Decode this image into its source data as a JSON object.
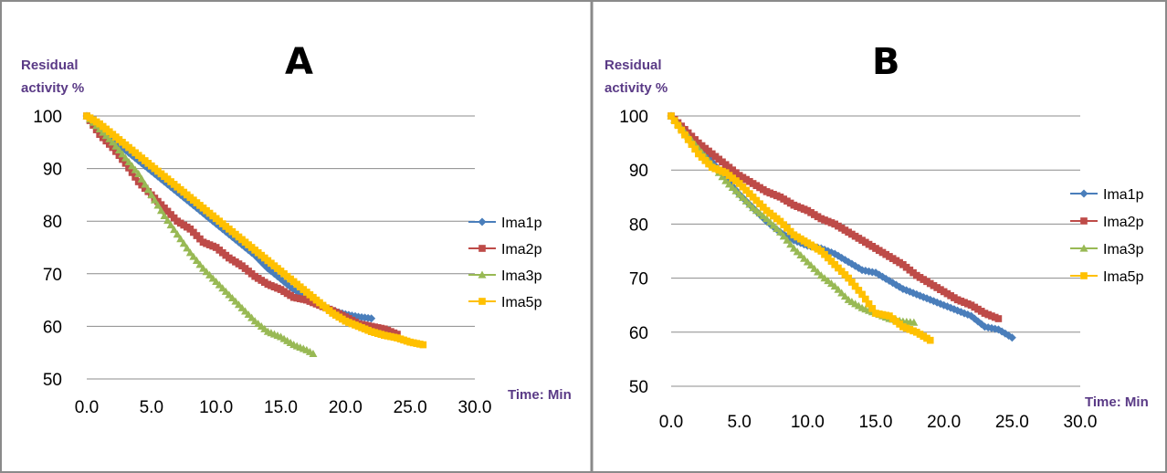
{
  "chart_data": [
    {
      "type": "line",
      "panel": "A",
      "title": "A",
      "ylabel": "Residual activity %",
      "ylabel_lines": [
        "Residual",
        "activity %"
      ],
      "xlabel": "Time: Min",
      "xlim": [
        0,
        30
      ],
      "ylim": [
        50,
        100
      ],
      "xticks": [
        "0.0",
        "5.0",
        "10.0",
        "15.0",
        "20.0",
        "25.0",
        "30.0"
      ],
      "yticks": [
        "50",
        "60",
        "70",
        "80",
        "90",
        "100"
      ],
      "grid": "horizontal",
      "legend_position": "right",
      "series": [
        {
          "name": "Ima1p",
          "color": "#4a7ebb",
          "marker": "diamond",
          "x": [
            0,
            1,
            2,
            3,
            4,
            5,
            6,
            7,
            8,
            9,
            10,
            11,
            12,
            13,
            14,
            15,
            16,
            17,
            18,
            19,
            20,
            21,
            22
          ],
          "y": [
            100,
            97.5,
            95.5,
            93.5,
            91.5,
            89.5,
            87.5,
            85.5,
            83.5,
            81.5,
            79.5,
            77.5,
            75.5,
            73.5,
            71,
            69,
            67,
            65.5,
            64,
            63,
            62.3,
            61.8,
            61.5
          ]
        },
        {
          "name": "Ima2p",
          "color": "#be4b48",
          "marker": "square",
          "x": [
            0,
            1,
            2,
            3,
            4,
            5,
            6,
            7,
            8,
            9,
            10,
            11,
            12,
            13,
            14,
            15,
            16,
            17,
            18,
            19,
            20,
            21,
            22,
            23,
            24
          ],
          "y": [
            100,
            96.5,
            94,
            91,
            87.5,
            85,
            82.5,
            80,
            78.5,
            76,
            75,
            73,
            71.5,
            69.5,
            68,
            67,
            65.5,
            65,
            64,
            63,
            61.8,
            60.5,
            60,
            59.5,
            58.5
          ]
        },
        {
          "name": "Ima3p",
          "color": "#98b954",
          "marker": "triangle",
          "x": [
            0,
            1,
            2,
            3,
            4,
            5,
            6,
            7,
            8,
            9,
            10,
            11,
            12,
            13,
            14,
            15,
            16,
            17,
            17.5
          ],
          "y": [
            100,
            97.5,
            95,
            92,
            89,
            85,
            81,
            77.5,
            74,
            71,
            68.5,
            66,
            63.5,
            61,
            59,
            58,
            56.5,
            55.5,
            54.8
          ]
        },
        {
          "name": "Ima5p",
          "color": "#ffc000",
          "marker": "square",
          "x": [
            0,
            1,
            2,
            3,
            4,
            5,
            6,
            7,
            8,
            9,
            10,
            11,
            12,
            13,
            14,
            15,
            16,
            17,
            18,
            19,
            20,
            21,
            22,
            23,
            24,
            25,
            26
          ],
          "y": [
            100,
            98.5,
            96.5,
            94.5,
            92.5,
            90.5,
            88.5,
            86.5,
            84.5,
            82.5,
            80.5,
            78.5,
            76.5,
            74.5,
            72.5,
            70.5,
            68.5,
            66.5,
            64.5,
            62.5,
            61,
            60,
            59,
            58.3,
            57.8,
            57,
            56.5
          ]
        }
      ]
    },
    {
      "type": "line",
      "panel": "B",
      "title": "B",
      "ylabel": "Residual activity %",
      "ylabel_lines": [
        "Residual",
        "activity %"
      ],
      "xlabel": "Time: Min",
      "xlim": [
        0,
        30
      ],
      "ylim": [
        50,
        100
      ],
      "xticks": [
        "0.0",
        "5.0",
        "10.0",
        "15.0",
        "20.0",
        "25.0",
        "30.0"
      ],
      "yticks": [
        "50",
        "60",
        "70",
        "80",
        "90",
        "100"
      ],
      "grid": "horizontal",
      "legend_position": "right",
      "series": [
        {
          "name": "Ima1p",
          "color": "#4a7ebb",
          "marker": "diamond",
          "x": [
            0,
            1,
            2,
            3,
            4,
            5,
            6,
            7,
            8,
            9,
            10,
            11,
            12,
            13,
            14,
            15,
            16,
            17,
            18,
            19,
            20,
            21,
            22,
            23,
            24,
            25
          ],
          "y": [
            100,
            97.5,
            94.5,
            91.5,
            88.5,
            85.5,
            83,
            80.5,
            78.5,
            77,
            76,
            75.5,
            74.5,
            73,
            71.5,
            71,
            69.5,
            68,
            67,
            66,
            65,
            64,
            63,
            61,
            60.5,
            59
          ]
        },
        {
          "name": "Ima2p",
          "color": "#be4b48",
          "marker": "square",
          "x": [
            0,
            1,
            2,
            3,
            4,
            5,
            6,
            7,
            8,
            9,
            10,
            11,
            12,
            13,
            14,
            15,
            16,
            17,
            18,
            19,
            20,
            21,
            22,
            23,
            24
          ],
          "y": [
            100,
            97.5,
            95,
            93,
            91,
            89,
            87.5,
            86,
            85,
            83.5,
            82.5,
            81,
            80,
            78.5,
            77,
            75.5,
            74,
            72.5,
            70.5,
            69,
            67.5,
            66,
            65,
            63.5,
            62.5
          ]
        },
        {
          "name": "Ima3p",
          "color": "#98b954",
          "marker": "triangle",
          "x": [
            0,
            1,
            2,
            3,
            4,
            5,
            6,
            7,
            8,
            9,
            10,
            11,
            12,
            13,
            14,
            15,
            16,
            17,
            17.8
          ],
          "y": [
            100,
            97,
            94,
            91,
            88,
            85.5,
            83,
            81,
            78.5,
            75.5,
            73,
            70.5,
            68.5,
            66,
            64.5,
            63.5,
            62.5,
            62,
            61.8
          ]
        },
        {
          "name": "Ima5p",
          "color": "#ffc000",
          "marker": "square",
          "x": [
            0,
            1,
            2,
            3,
            4,
            5,
            6,
            7,
            8,
            9,
            10,
            11,
            12,
            13,
            14,
            15,
            16,
            17,
            18,
            19
          ],
          "y": [
            100,
            96.5,
            93,
            90.5,
            89.5,
            87.5,
            85,
            82.5,
            80.5,
            78,
            76.5,
            75,
            72.5,
            70,
            67,
            63.5,
            63,
            61,
            60,
            58.5
          ]
        }
      ]
    }
  ]
}
